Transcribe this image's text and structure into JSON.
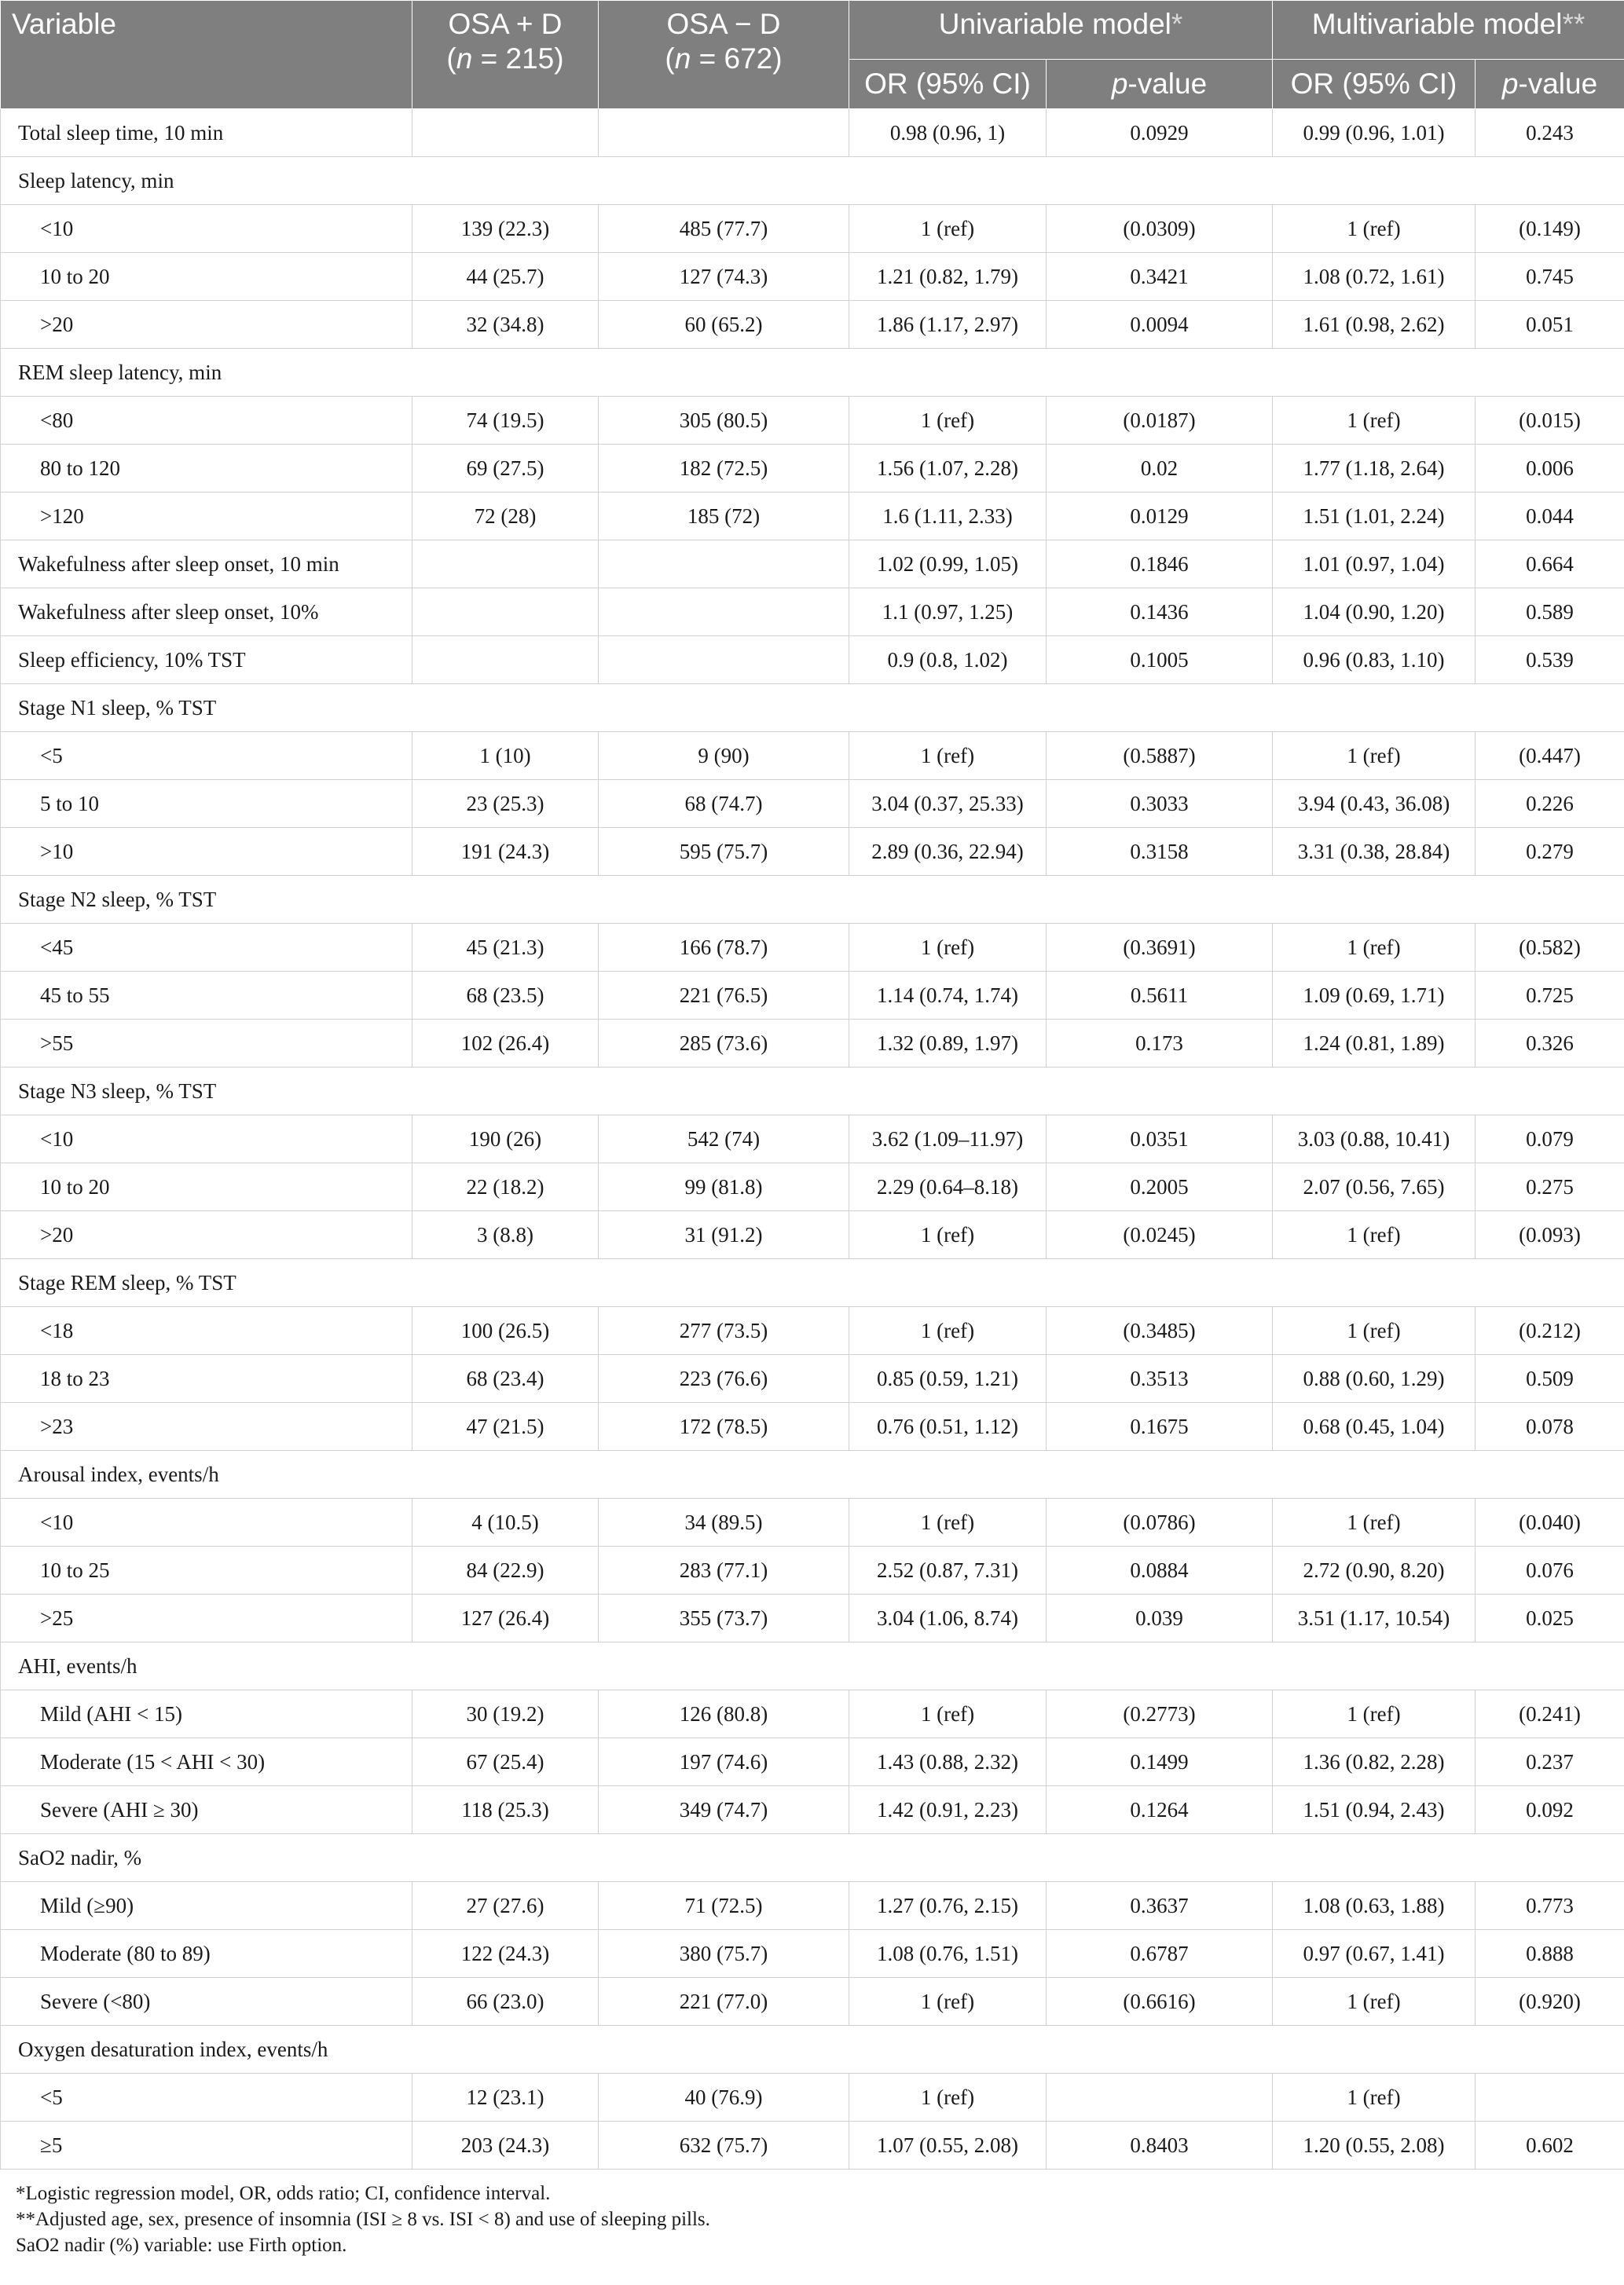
{
  "header": {
    "variable": "Variable",
    "osa_plus": "OSA + D",
    "osa_plus_n_prefix": "(",
    "osa_plus_n_var": "n",
    "osa_plus_n_suffix": " = 215)",
    "osa_minus": "OSA − D",
    "osa_minus_n_prefix": "(",
    "osa_minus_n_var": "n",
    "osa_minus_n_suffix": " = 672)",
    "univariable": "Univariable model",
    "univariable_mark": "*",
    "multivariable": "Multivariable model",
    "multivariable_mark": "**",
    "or_ci": "OR (95% CI)",
    "p_value_p": "p",
    "p_value_rest": "-value",
    "or_ci_2": "OR (95% CI)",
    "p_value_p_2": "p",
    "p_value_rest_2": "-value"
  },
  "rows": [
    {
      "type": "group",
      "label": "Total sleep time, 10 min",
      "plus": "",
      "minus": "",
      "uni_or": "0.98 (0.96, 1)",
      "uni_p": "0.0929",
      "multi_or": "0.99 (0.96, 1.01)",
      "multi_p": "0.243"
    },
    {
      "type": "header",
      "label": "Sleep latency, min"
    },
    {
      "type": "sub",
      "label": "<10",
      "plus": "139 (22.3)",
      "minus": "485 (77.7)",
      "uni_or": "1 (ref)",
      "uni_p": "(0.0309)",
      "multi_or": "1 (ref)",
      "multi_p": "(0.149)"
    },
    {
      "type": "sub",
      "label": "10 to 20",
      "plus": "44 (25.7)",
      "minus": "127 (74.3)",
      "uni_or": "1.21 (0.82, 1.79)",
      "uni_p": "0.3421",
      "multi_or": "1.08 (0.72, 1.61)",
      "multi_p": "0.745"
    },
    {
      "type": "sub",
      "label": ">20",
      "plus": "32 (34.8)",
      "minus": "60 (65.2)",
      "uni_or": "1.86 (1.17, 2.97)",
      "uni_p": "0.0094",
      "multi_or": "1.61 (0.98, 2.62)",
      "multi_p": "0.051"
    },
    {
      "type": "header",
      "label": "REM sleep latency, min"
    },
    {
      "type": "sub",
      "label": "<80",
      "plus": "74 (19.5)",
      "minus": "305 (80.5)",
      "uni_or": "1 (ref)",
      "uni_p": "(0.0187)",
      "multi_or": "1 (ref)",
      "multi_p": "(0.015)"
    },
    {
      "type": "sub",
      "label": "80 to 120",
      "plus": "69 (27.5)",
      "minus": "182 (72.5)",
      "uni_or": "1.56 (1.07, 2.28)",
      "uni_p": "0.02",
      "multi_or": "1.77 (1.18, 2.64)",
      "multi_p": "0.006"
    },
    {
      "type": "sub",
      "label": ">120",
      "plus": "72 (28)",
      "minus": "185 (72)",
      "uni_or": "1.6 (1.11, 2.33)",
      "uni_p": "0.0129",
      "multi_or": "1.51 (1.01, 2.24)",
      "multi_p": "0.044"
    },
    {
      "type": "group",
      "label": "Wakefulness after sleep onset, 10 min",
      "plus": "",
      "minus": "",
      "uni_or": "1.02 (0.99, 1.05)",
      "uni_p": "0.1846",
      "multi_or": "1.01 (0.97, 1.04)",
      "multi_p": "0.664"
    },
    {
      "type": "group",
      "label": "Wakefulness after sleep onset, 10%",
      "plus": "",
      "minus": "",
      "uni_or": "1.1 (0.97, 1.25)",
      "uni_p": "0.1436",
      "multi_or": "1.04 (0.90, 1.20)",
      "multi_p": "0.589"
    },
    {
      "type": "group",
      "label": "Sleep efficiency, 10% TST",
      "plus": "",
      "minus": "",
      "uni_or": "0.9 (0.8, 1.02)",
      "uni_p": "0.1005",
      "multi_or": "0.96 (0.83, 1.10)",
      "multi_p": "0.539"
    },
    {
      "type": "header",
      "label": "Stage N1 sleep, % TST"
    },
    {
      "type": "sub",
      "label": "<5",
      "plus": "1 (10)",
      "minus": "9 (90)",
      "uni_or": "1 (ref)",
      "uni_p": "(0.5887)",
      "multi_or": "1 (ref)",
      "multi_p": "(0.447)"
    },
    {
      "type": "sub",
      "label": "5 to 10",
      "plus": "23 (25.3)",
      "minus": "68 (74.7)",
      "uni_or": "3.04 (0.37, 25.33)",
      "uni_p": "0.3033",
      "multi_or": "3.94 (0.43, 36.08)",
      "multi_p": "0.226"
    },
    {
      "type": "sub",
      "label": ">10",
      "plus": "191 (24.3)",
      "minus": "595 (75.7)",
      "uni_or": "2.89 (0.36, 22.94)",
      "uni_p": "0.3158",
      "multi_or": "3.31 (0.38, 28.84)",
      "multi_p": "0.279"
    },
    {
      "type": "header",
      "label": "Stage N2 sleep, % TST"
    },
    {
      "type": "sub",
      "label": "<45",
      "plus": "45 (21.3)",
      "minus": "166 (78.7)",
      "uni_or": "1 (ref)",
      "uni_p": "(0.3691)",
      "multi_or": "1 (ref)",
      "multi_p": "(0.582)"
    },
    {
      "type": "sub",
      "label": "45 to 55",
      "plus": "68 (23.5)",
      "minus": "221 (76.5)",
      "uni_or": "1.14 (0.74, 1.74)",
      "uni_p": "0.5611",
      "multi_or": "1.09 (0.69, 1.71)",
      "multi_p": "0.725"
    },
    {
      "type": "sub",
      "label": ">55",
      "plus": "102 (26.4)",
      "minus": "285 (73.6)",
      "uni_or": "1.32 (0.89, 1.97)",
      "uni_p": "0.173",
      "multi_or": "1.24 (0.81, 1.89)",
      "multi_p": "0.326"
    },
    {
      "type": "header",
      "label": "Stage N3 sleep, % TST"
    },
    {
      "type": "sub",
      "label": "<10",
      "plus": "190 (26)",
      "minus": "542 (74)",
      "uni_or": "3.62 (1.09–11.97)",
      "uni_p": "0.0351",
      "multi_or": "3.03 (0.88, 10.41)",
      "multi_p": "0.079"
    },
    {
      "type": "sub",
      "label": "10 to 20",
      "plus": "22 (18.2)",
      "minus": "99 (81.8)",
      "uni_or": "2.29 (0.64–8.18)",
      "uni_p": "0.2005",
      "multi_or": "2.07 (0.56, 7.65)",
      "multi_p": "0.275"
    },
    {
      "type": "sub",
      "label": ">20",
      "plus": "3 (8.8)",
      "minus": "31 (91.2)",
      "uni_or": "1 (ref)",
      "uni_p": "(0.0245)",
      "multi_or": "1 (ref)",
      "multi_p": "(0.093)"
    },
    {
      "type": "header",
      "label": "Stage REM sleep, % TST"
    },
    {
      "type": "sub",
      "label": "<18",
      "plus": "100 (26.5)",
      "minus": "277 (73.5)",
      "uni_or": "1 (ref)",
      "uni_p": "(0.3485)",
      "multi_or": "1 (ref)",
      "multi_p": "(0.212)"
    },
    {
      "type": "sub",
      "label": "18 to 23",
      "plus": "68 (23.4)",
      "minus": "223 (76.6)",
      "uni_or": "0.85 (0.59, 1.21)",
      "uni_p": "0.3513",
      "multi_or": "0.88 (0.60, 1.29)",
      "multi_p": "0.509"
    },
    {
      "type": "sub",
      "label": ">23",
      "plus": "47 (21.5)",
      "minus": "172 (78.5)",
      "uni_or": "0.76 (0.51, 1.12)",
      "uni_p": "0.1675",
      "multi_or": "0.68 (0.45, 1.04)",
      "multi_p": "0.078"
    },
    {
      "type": "header",
      "label": "Arousal index, events/h"
    },
    {
      "type": "sub",
      "label": "<10",
      "plus": "4 (10.5)",
      "minus": "34 (89.5)",
      "uni_or": "1 (ref)",
      "uni_p": "(0.0786)",
      "multi_or": "1 (ref)",
      "multi_p": "(0.040)"
    },
    {
      "type": "sub",
      "label": "10 to 25",
      "plus": "84 (22.9)",
      "minus": "283 (77.1)",
      "uni_or": "2.52 (0.87, 7.31)",
      "uni_p": "0.0884",
      "multi_or": "2.72 (0.90, 8.20)",
      "multi_p": "0.076"
    },
    {
      "type": "sub",
      "label": ">25",
      "plus": "127 (26.4)",
      "minus": "355 (73.7)",
      "uni_or": "3.04 (1.06, 8.74)",
      "uni_p": "0.039",
      "multi_or": "3.51 (1.17, 10.54)",
      "multi_p": "0.025"
    },
    {
      "type": "header",
      "label": "AHI, events/h"
    },
    {
      "type": "sub",
      "label": "Mild (AHI < 15)",
      "plus": "30 (19.2)",
      "minus": "126 (80.8)",
      "uni_or": "1 (ref)",
      "uni_p": "(0.2773)",
      "multi_or": "1 (ref)",
      "multi_p": "(0.241)"
    },
    {
      "type": "sub",
      "label": "Moderate (15 < AHI < 30)",
      "plus": "67 (25.4)",
      "minus": "197 (74.6)",
      "uni_or": "1.43 (0.88, 2.32)",
      "uni_p": "0.1499",
      "multi_or": "1.36 (0.82, 2.28)",
      "multi_p": "0.237"
    },
    {
      "type": "sub",
      "label": "Severe (AHI ≥ 30)",
      "plus": "118 (25.3)",
      "minus": "349 (74.7)",
      "uni_or": "1.42 (0.91, 2.23)",
      "uni_p": "0.1264",
      "multi_or": "1.51 (0.94, 2.43)",
      "multi_p": "0.092"
    },
    {
      "type": "header",
      "label": "SaO2 nadir, %"
    },
    {
      "type": "sub",
      "label": "Mild (≥90)",
      "plus": "27 (27.6)",
      "minus": "71 (72.5)",
      "uni_or": "1.27 (0.76, 2.15)",
      "uni_p": "0.3637",
      "multi_or": "1.08 (0.63, 1.88)",
      "multi_p": "0.773"
    },
    {
      "type": "sub",
      "label": "Moderate (80 to 89)",
      "plus": "122 (24.3)",
      "minus": "380 (75.7)",
      "uni_or": "1.08 (0.76, 1.51)",
      "uni_p": "0.6787",
      "multi_or": "0.97 (0.67, 1.41)",
      "multi_p": "0.888"
    },
    {
      "type": "sub",
      "label": "Severe (<80)",
      "plus": "66 (23.0)",
      "minus": "221 (77.0)",
      "uni_or": "1 (ref)",
      "uni_p": "(0.6616)",
      "multi_or": "1 (ref)",
      "multi_p": "(0.920)"
    },
    {
      "type": "header",
      "label": "Oxygen desaturation index, events/h"
    },
    {
      "type": "sub",
      "label": "<5",
      "plus": "12 (23.1)",
      "minus": "40 (76.9)",
      "uni_or": "1 (ref)",
      "uni_p": "",
      "multi_or": "1 (ref)",
      "multi_p": ""
    },
    {
      "type": "sub",
      "label": "≥5",
      "plus": "203 (24.3)",
      "minus": "632 (75.7)",
      "uni_or": "1.07 (0.55, 2.08)",
      "uni_p": "0.8403",
      "multi_or": "1.20 (0.55, 2.08)",
      "multi_p": "0.602"
    }
  ],
  "footnotes": [
    "*Logistic regression model, OR, odds ratio; CI, confidence interval.",
    "**Adjusted age, sex, presence of insomnia (ISI ≥ 8 vs. ISI < 8) and use of sleeping pills.",
    "SaO2 nadir (%) variable: use Firth option."
  ],
  "colors": {
    "header_bg": "#7f7f7f",
    "header_text": "#ffffff",
    "grid": "#d0d0d0"
  }
}
